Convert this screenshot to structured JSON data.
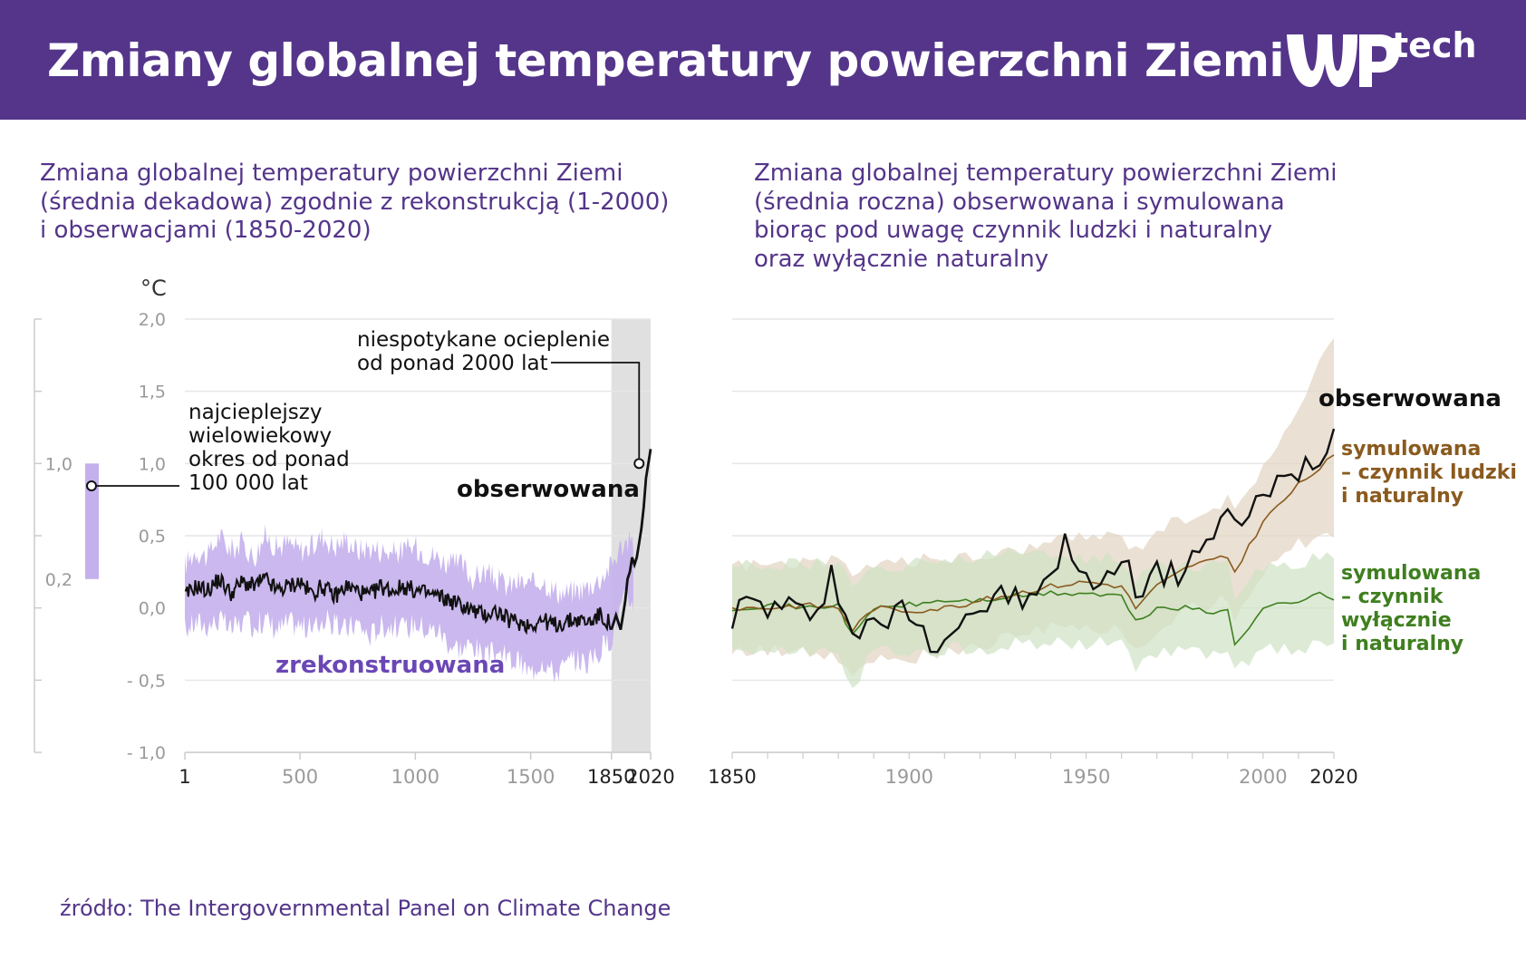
{
  "header": {
    "title": "Zmiany globalnej temperatury powierzchni Ziemi",
    "logo_text": "tech"
  },
  "colors": {
    "header_bg": "#54358a",
    "reconstructed": "#c4b0ec",
    "observed": "#111111",
    "human_natural": "#8a5a1e",
    "human_natural_band": "#e3d6c4",
    "natural_only": "#3f7f1f",
    "natural_only_band": "#cfe3c5",
    "highlight": "#e0e0e0"
  },
  "source": "źródło: The Intergovernmental Panel on Climate Change",
  "chart_data": [
    {
      "type": "line",
      "subtitle_lines": [
        "Zmiana globalnej temperatury powierzchni Ziemi",
        "(średnia dekadowa) zgodnie z rekonstrukcją (1-2000)",
        "i obserwacjami (1850-2020)"
      ],
      "yunit": "°C",
      "ylim": [
        -1.0,
        2.0
      ],
      "yticks": [
        2.0,
        1.5,
        1.0,
        0.5,
        0.0,
        -0.5,
        -1.0
      ],
      "ytick_labels": [
        "2,0",
        "1,5",
        "1,0",
        "0,5",
        "0,0",
        "- 0,5",
        "- 1,0"
      ],
      "xlim": [
        1,
        2020
      ],
      "xtick_labels": [
        {
          "x": 1,
          "label": "1"
        },
        {
          "x": 500,
          "label": "500"
        },
        {
          "x": 1000,
          "label": "1000"
        },
        {
          "x": 1500,
          "label": "1500"
        },
        {
          "x": 1850,
          "label": "1850"
        },
        {
          "x": 2020,
          "label": "2020"
        }
      ],
      "highlight_range": [
        1850,
        2020
      ],
      "side_scale": {
        "ticks": [
          1.0,
          0.2
        ],
        "tick_labels": [
          "1,0",
          "0,2"
        ],
        "bar_range": [
          0.2,
          1.0
        ],
        "label_lines": [
          "najcieplejszy",
          "wielowiekowy",
          "okres od ponad",
          "100 000 lat"
        ]
      },
      "annotation": {
        "lines": [
          "niespotykane ocieplenie",
          "od ponad 2000 lat"
        ],
        "point": {
          "x": 1970,
          "y": 1.0
        }
      },
      "series": [
        {
          "name": "zrekonstruowana",
          "kind": "band",
          "x": [
            1,
            50,
            100,
            150,
            200,
            250,
            300,
            350,
            400,
            450,
            500,
            550,
            600,
            650,
            700,
            750,
            800,
            850,
            900,
            950,
            1000,
            1050,
            1100,
            1150,
            1200,
            1250,
            1300,
            1350,
            1400,
            1450,
            1500,
            1550,
            1600,
            1650,
            1700,
            1750,
            1800,
            1850,
            1900
          ],
          "low": [
            -0.15,
            -0.1,
            -0.12,
            -0.08,
            -0.15,
            -0.1,
            -0.12,
            -0.08,
            -0.15,
            -0.1,
            -0.12,
            -0.15,
            -0.08,
            -0.12,
            -0.15,
            -0.1,
            -0.2,
            -0.12,
            -0.12,
            -0.15,
            -0.1,
            -0.15,
            -0.15,
            -0.25,
            -0.28,
            -0.25,
            -0.35,
            -0.3,
            -0.35,
            -0.38,
            -0.45,
            -0.35,
            -0.45,
            -0.4,
            -0.35,
            -0.38,
            -0.3,
            -0.2,
            0.05
          ],
          "high": [
            0.3,
            0.4,
            0.35,
            0.5,
            0.4,
            0.45,
            0.35,
            0.5,
            0.42,
            0.45,
            0.4,
            0.42,
            0.5,
            0.42,
            0.48,
            0.4,
            0.42,
            0.4,
            0.38,
            0.4,
            0.42,
            0.38,
            0.35,
            0.3,
            0.3,
            0.2,
            0.25,
            0.2,
            0.15,
            0.18,
            0.15,
            0.2,
            0.12,
            0.1,
            0.12,
            0.15,
            0.2,
            0.3,
            0.45
          ]
        },
        {
          "name": "obserwowana",
          "kind": "line",
          "x": [
            1850,
            1860,
            1870,
            1880,
            1890,
            1900,
            1910,
            1920,
            1930,
            1940,
            1950,
            1960,
            1970,
            1980,
            1990,
            2000,
            2010,
            2020
          ],
          "values": [
            -0.15,
            -0.1,
            -0.05,
            -0.1,
            -0.15,
            -0.05,
            0.05,
            0.2,
            0.25,
            0.35,
            0.3,
            0.35,
            0.45,
            0.55,
            0.7,
            0.9,
            1.0,
            1.1
          ]
        },
        {
          "name": "",
          "kind": "recon_line",
          "x": [
            1,
            50,
            100,
            150,
            200,
            250,
            300,
            350,
            400,
            450,
            500,
            550,
            600,
            650,
            700,
            750,
            800,
            850,
            900,
            950,
            1000,
            1050,
            1100,
            1150,
            1200,
            1250,
            1300,
            1350,
            1400,
            1450,
            1500,
            1550,
            1600,
            1650,
            1700,
            1750,
            1800,
            1850
          ],
          "values": [
            0.08,
            0.15,
            0.12,
            0.2,
            0.1,
            0.18,
            0.15,
            0.2,
            0.12,
            0.15,
            0.18,
            0.1,
            0.15,
            0.08,
            0.15,
            0.12,
            0.08,
            0.15,
            0.12,
            0.15,
            0.12,
            0.1,
            0.08,
            0.05,
            0.02,
            -0.02,
            -0.05,
            -0.02,
            -0.08,
            -0.1,
            -0.12,
            -0.08,
            -0.12,
            -0.1,
            -0.08,
            -0.1,
            -0.05,
            -0.12
          ]
        }
      ],
      "labels": {
        "observed": "obserwowana",
        "reconstructed": "zrekonstruowana"
      }
    },
    {
      "type": "line",
      "subtitle_lines": [
        "Zmiana globalnej temperatury powierzchni Ziemi",
        "(średnia roczna) obserwowana i symulowana",
        "biorąc pod uwagę czynnik ludzki i naturalny",
        "oraz wyłącznie naturalny"
      ],
      "ylim": [
        -1.0,
        2.0
      ],
      "gridlines": [
        2.0,
        1.5,
        1.0,
        0.5,
        0.0,
        -0.5,
        -1.0
      ],
      "xlim": [
        1850,
        2020
      ],
      "xtick_labels": [
        {
          "x": 1850,
          "label": "1850"
        },
        {
          "x": 1900,
          "label": "1900"
        },
        {
          "x": 1950,
          "label": "1950"
        },
        {
          "x": 2000,
          "label": "2000"
        },
        {
          "x": 2020,
          "label": "2020"
        }
      ],
      "series": [
        {
          "name": "obserwowana",
          "x": [
            1850,
            1855,
            1860,
            1865,
            1870,
            1875,
            1878,
            1880,
            1885,
            1890,
            1895,
            1900,
            1905,
            1910,
            1915,
            1920,
            1925,
            1930,
            1935,
            1940,
            1944,
            1950,
            1955,
            1960,
            1965,
            1970,
            1975,
            1980,
            1985,
            1990,
            1995,
            2000,
            2005,
            2010,
            2015,
            2020
          ],
          "values": [
            -0.05,
            0.05,
            0.0,
            0.0,
            -0.05,
            0.05,
            0.3,
            0.0,
            -0.15,
            -0.15,
            -0.05,
            0.0,
            -0.2,
            -0.2,
            -0.05,
            0.0,
            0.05,
            0.1,
            0.0,
            0.25,
            0.45,
            0.15,
            0.25,
            0.3,
            0.15,
            0.25,
            0.2,
            0.4,
            0.45,
            0.6,
            0.65,
            0.75,
            0.85,
            0.95,
            1.05,
            1.2
          ]
        },
        {
          "name": "symulowana – czynnik ludzki i naturalny",
          "x": [
            1850,
            1860,
            1870,
            1880,
            1884,
            1890,
            1900,
            1910,
            1920,
            1930,
            1940,
            1950,
            1960,
            1964,
            1970,
            1980,
            1990,
            1992,
            2000,
            2010,
            2020
          ],
          "values": [
            0.0,
            0.0,
            0.02,
            0.0,
            -0.15,
            0.0,
            -0.02,
            0.0,
            0.05,
            0.1,
            0.15,
            0.18,
            0.15,
            0.0,
            0.15,
            0.3,
            0.35,
            0.25,
            0.6,
            0.85,
            1.05
          ],
          "band_low": [
            -0.3,
            -0.3,
            -0.3,
            -0.35,
            -0.5,
            -0.35,
            -0.35,
            -0.3,
            -0.25,
            -0.2,
            -0.15,
            -0.15,
            -0.15,
            -0.3,
            -0.15,
            0.0,
            0.05,
            -0.05,
            0.25,
            0.45,
            0.5
          ],
          "band_high": [
            0.3,
            0.3,
            0.32,
            0.32,
            0.2,
            0.32,
            0.32,
            0.35,
            0.35,
            0.4,
            0.45,
            0.5,
            0.5,
            0.4,
            0.55,
            0.65,
            0.75,
            0.65,
            1.0,
            1.35,
            1.9
          ]
        },
        {
          "name": "symulowana – czynnik wyłącznie i naturalny",
          "x": [
            1850,
            1860,
            1870,
            1880,
            1884,
            1890,
            1900,
            1910,
            1920,
            1930,
            1940,
            1950,
            1960,
            1964,
            1970,
            1980,
            1985,
            1990,
            1992,
            2000,
            2010,
            2015,
            2020
          ],
          "values": [
            0.0,
            0.02,
            0.0,
            0.02,
            -0.2,
            0.0,
            0.02,
            0.05,
            0.05,
            0.08,
            0.1,
            0.1,
            0.08,
            -0.1,
            0.0,
            0.0,
            -0.05,
            0.0,
            -0.25,
            0.0,
            0.05,
            0.1,
            0.05
          ],
          "band_low": [
            -0.3,
            -0.3,
            -0.3,
            -0.3,
            -0.55,
            -0.3,
            -0.3,
            -0.28,
            -0.28,
            -0.25,
            -0.25,
            -0.25,
            -0.25,
            -0.4,
            -0.3,
            -0.3,
            -0.35,
            -0.3,
            -0.45,
            -0.3,
            -0.28,
            -0.25,
            -0.25
          ],
          "band_high": [
            0.3,
            0.3,
            0.3,
            0.3,
            0.15,
            0.3,
            0.3,
            0.32,
            0.35,
            0.38,
            0.38,
            0.35,
            0.35,
            0.2,
            0.3,
            0.3,
            0.28,
            0.3,
            0.1,
            0.3,
            0.32,
            0.35,
            0.35
          ]
        }
      ],
      "labels": {
        "observed": "obserwowana",
        "human_natural_lines": [
          "symulowana",
          "– czynnik ludzki",
          "i naturalny"
        ],
        "natural_only_lines": [
          "symulowana",
          "– czynnik",
          "wyłącznie",
          "i naturalny"
        ]
      }
    }
  ]
}
